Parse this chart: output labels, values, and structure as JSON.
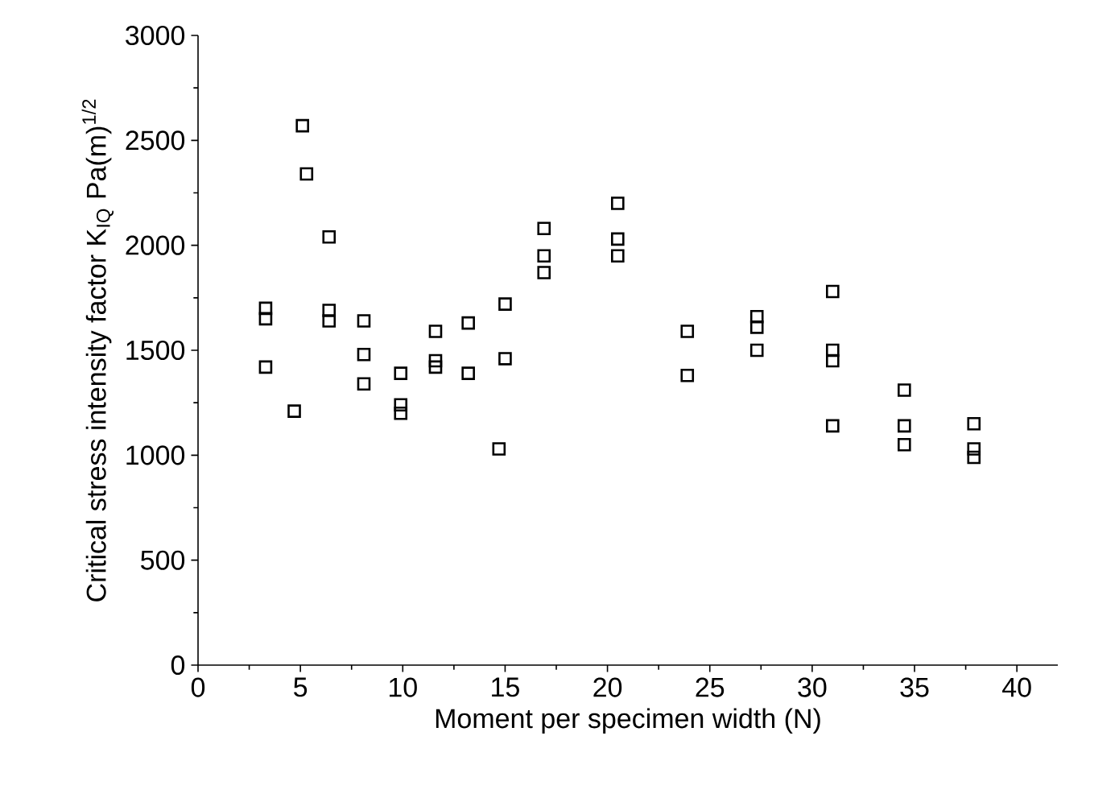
{
  "chart_data": {
    "type": "scatter",
    "xlabel": "Moment per specimen width (N)",
    "ylabel": "Critical stress intensity factor K$_{IQ}$ Pa(m)$^{1/2}$",
    "x": [
      3.3,
      3.3,
      3.3,
      4.7,
      5.1,
      5.3,
      6.4,
      6.4,
      6.4,
      8.1,
      8.1,
      8.1,
      9.9,
      9.9,
      9.9,
      11.6,
      11.6,
      11.6,
      13.2,
      13.2,
      14.7,
      15.0,
      15.0,
      16.9,
      16.9,
      16.9,
      20.5,
      20.5,
      20.5,
      23.9,
      23.9,
      27.3,
      27.3,
      27.3,
      31.0,
      31.0,
      31.0,
      31.0,
      34.5,
      34.5,
      34.5,
      37.9,
      37.9,
      37.9
    ],
    "values": [
      1700,
      1650,
      1420,
      1210,
      2570,
      2340,
      2040,
      1690,
      1640,
      1640,
      1480,
      1340,
      1390,
      1240,
      1200,
      1590,
      1450,
      1420,
      1630,
      1390,
      1030,
      1720,
      1460,
      2080,
      1950,
      1870,
      2200,
      2030,
      1950,
      1590,
      1380,
      1660,
      1610,
      1500,
      1780,
      1500,
      1450,
      1140,
      1310,
      1140,
      1050,
      1150,
      1030,
      990
    ],
    "color": "#000000",
    "marker": "square",
    "xlim": [
      0,
      42
    ],
    "ylim": [
      0,
      3000
    ],
    "xticks": [
      0,
      5,
      10,
      15,
      20,
      25,
      30,
      35,
      40
    ],
    "yticks": [
      0,
      500,
      1000,
      1500,
      2000,
      2500,
      3000
    ]
  }
}
